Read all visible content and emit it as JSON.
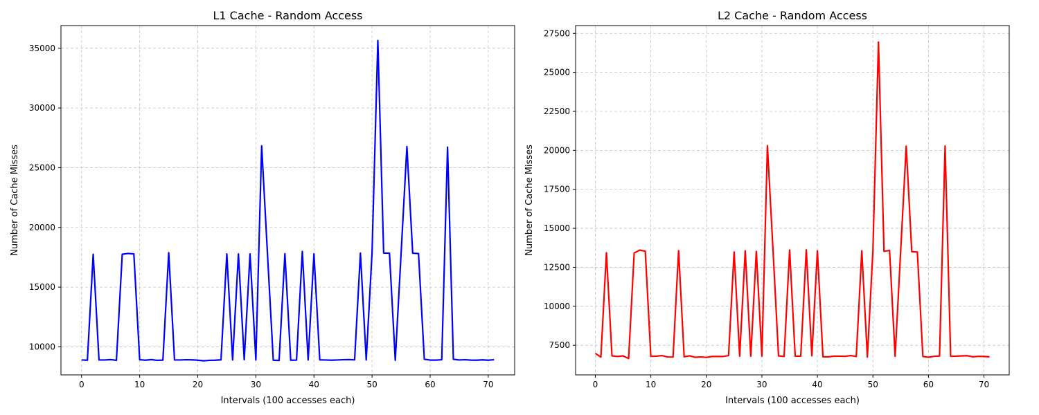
{
  "chart_data": [
    {
      "type": "line",
      "title": "L1 Cache - Random Access",
      "xlabel": "Intervals (100 accesses each)",
      "ylabel": "Number of Cache Misses",
      "xlim": [
        -3.55,
        74.55
      ],
      "ylim": [
        7650,
        36900
      ],
      "xticks": [
        0,
        10,
        20,
        30,
        40,
        50,
        60,
        70
      ],
      "yticks": [
        10000,
        15000,
        20000,
        25000,
        30000,
        35000
      ],
      "grid": true,
      "color": "#0000ff",
      "x": [
        0,
        1,
        2,
        3,
        4,
        5,
        6,
        7,
        8,
        9,
        10,
        11,
        12,
        13,
        14,
        15,
        16,
        17,
        18,
        19,
        20,
        21,
        22,
        23,
        24,
        25,
        26,
        27,
        28,
        29,
        30,
        31,
        32,
        33,
        34,
        35,
        36,
        37,
        38,
        39,
        40,
        41,
        42,
        43,
        44,
        45,
        46,
        47,
        48,
        49,
        50,
        51,
        52,
        53,
        54,
        55,
        56,
        57,
        58,
        59,
        60,
        61,
        62,
        63,
        64,
        65,
        66,
        67,
        68,
        69,
        70,
        71
      ],
      "values": [
        8900,
        8880,
        17750,
        8900,
        8900,
        8930,
        8870,
        17750,
        17820,
        17780,
        8920,
        8880,
        8930,
        8870,
        8890,
        17880,
        8900,
        8900,
        8920,
        8910,
        8880,
        8830,
        8870,
        8880,
        8910,
        17780,
        8900,
        17780,
        8920,
        17780,
        8900,
        26820,
        17800,
        8880,
        8860,
        17800,
        8880,
        8890,
        17990,
        8900,
        17790,
        8910,
        8900,
        8880,
        8900,
        8920,
        8930,
        8910,
        17850,
        8900,
        17850,
        35650,
        17850,
        17840,
        8870,
        17800,
        26770,
        17840,
        17810,
        8960,
        8890,
        8890,
        8920,
        26720,
        8960,
        8900,
        8920,
        8890,
        8880,
        8910,
        8880,
        8920
      ]
    },
    {
      "type": "line",
      "title": "L2 Cache - Random Access",
      "xlabel": "Intervals (100 accesses each)",
      "ylabel": "Number of Cache Misses",
      "xlim": [
        -3.55,
        74.55
      ],
      "ylim": [
        5600,
        28000
      ],
      "xticks": [
        0,
        10,
        20,
        30,
        40,
        50,
        60,
        70
      ],
      "yticks": [
        7500,
        10000,
        12500,
        15000,
        17500,
        20000,
        22500,
        25000,
        27500
      ],
      "grid": true,
      "color": "#ff0000",
      "x": [
        0,
        1,
        2,
        3,
        4,
        5,
        6,
        7,
        8,
        9,
        10,
        11,
        12,
        13,
        14,
        15,
        16,
        17,
        18,
        19,
        20,
        21,
        22,
        23,
        24,
        25,
        26,
        27,
        28,
        29,
        30,
        31,
        32,
        33,
        34,
        35,
        36,
        37,
        38,
        39,
        40,
        41,
        42,
        43,
        44,
        45,
        46,
        47,
        48,
        49,
        50,
        51,
        52,
        53,
        54,
        55,
        56,
        57,
        58,
        59,
        60,
        61,
        62,
        63,
        64,
        65,
        66,
        67,
        68,
        69,
        70,
        71
      ],
      "values": [
        6980,
        6740,
        13430,
        6820,
        6780,
        6820,
        6650,
        13420,
        13600,
        13530,
        6790,
        6800,
        6840,
        6750,
        6740,
        13570,
        6760,
        6820,
        6730,
        6750,
        6720,
        6780,
        6780,
        6780,
        6840,
        13480,
        6800,
        13560,
        6800,
        13520,
        6800,
        20300,
        13640,
        6820,
        6780,
        13610,
        6800,
        6800,
        13620,
        6820,
        13560,
        6760,
        6760,
        6800,
        6800,
        6790,
        6840,
        6780,
        13560,
        6740,
        13580,
        26950,
        13520,
        13580,
        6790,
        13560,
        20270,
        13500,
        13480,
        6780,
        6730,
        6790,
        6810,
        20280,
        6790,
        6800,
        6820,
        6830,
        6760,
        6790,
        6780,
        6760
      ]
    }
  ]
}
